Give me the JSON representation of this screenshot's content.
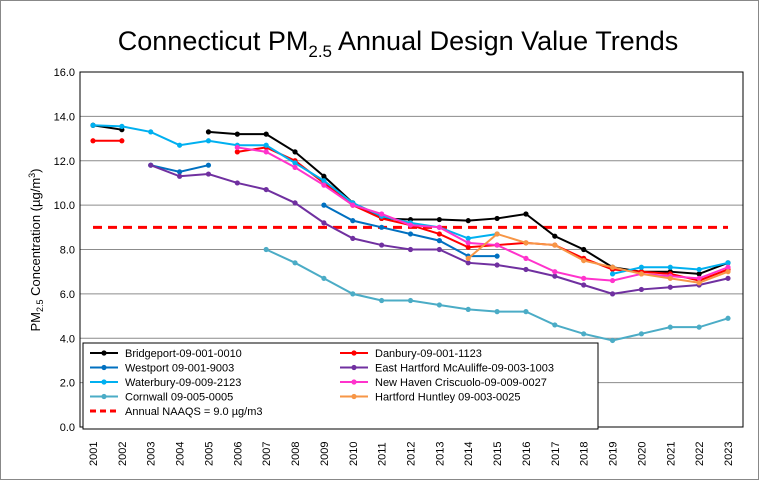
{
  "chart_data": {
    "type": "line",
    "title": {
      "main": "Connecticut PM",
      "sub": "2.5",
      "rest": " Annual Design Value Trends"
    },
    "ylabel": {
      "pre": "PM",
      "sub": "2.5",
      "mid": " Concentration (µg/m",
      "sup": "3",
      "post": ")"
    },
    "xlabel": "",
    "ylim": [
      0,
      16
    ],
    "yticks": [
      "0.0",
      "2.0",
      "4.0",
      "6.0",
      "8.0",
      "10.0",
      "12.0",
      "14.0",
      "16.0"
    ],
    "x": [
      "2001",
      "2002",
      "2003",
      "2004",
      "2005",
      "2006",
      "2007",
      "2008",
      "2009",
      "2010",
      "2011",
      "2012",
      "2013",
      "2014",
      "2015",
      "2016",
      "2017",
      "2018",
      "2019",
      "2020",
      "2021",
      "2022",
      "2023"
    ],
    "grid": true,
    "legend_position": "bottom-left",
    "series": [
      {
        "name": "Bridgeport-09-001-0010",
        "color": "#000000",
        "values": [
          13.6,
          13.4,
          null,
          null,
          13.3,
          13.2,
          13.2,
          12.4,
          11.3,
          10.1,
          9.4,
          9.35,
          9.35,
          9.3,
          9.4,
          9.6,
          8.6,
          8.0,
          7.2,
          7.0,
          7.0,
          6.9,
          7.4
        ]
      },
      {
        "name": "Danbury-09-001-1123",
        "color": "#ff0000",
        "values": [
          12.9,
          12.9,
          null,
          null,
          null,
          12.4,
          12.6,
          12.0,
          11.0,
          10.0,
          9.4,
          9.1,
          8.7,
          8.1,
          8.2,
          8.3,
          8.2,
          7.6,
          7.1,
          7.0,
          6.9,
          6.6,
          7.1
        ]
      },
      {
        "name": "Westport 09-001-9003",
        "color": "#0070c0",
        "values": [
          null,
          null,
          11.8,
          11.5,
          11.8,
          null,
          null,
          null,
          10.0,
          9.3,
          9.0,
          8.7,
          8.4,
          7.7,
          7.7,
          null,
          null,
          null,
          null,
          null,
          null,
          null,
          null
        ]
      },
      {
        "name": "East Hartford McAuliffe-09-003-1003",
        "color": "#7030a0",
        "values": [
          null,
          null,
          11.8,
          11.3,
          11.4,
          11.0,
          10.7,
          10.1,
          9.2,
          8.5,
          8.2,
          8.0,
          8.0,
          7.4,
          7.3,
          7.1,
          6.8,
          6.4,
          6.0,
          6.2,
          6.3,
          6.4,
          6.7
        ]
      },
      {
        "name": "Waterbury-09-009-2123",
        "color": "#00b0f0",
        "values": [
          13.6,
          13.55,
          13.3,
          12.7,
          12.9,
          12.7,
          12.7,
          11.9,
          11.1,
          10.1,
          9.5,
          9.2,
          9.0,
          8.5,
          8.7,
          null,
          null,
          null,
          6.9,
          7.2,
          7.2,
          7.1,
          7.4
        ]
      },
      {
        "name": "New Haven Criscuolo-09-009-0027",
        "color": "#ff33cc",
        "values": [
          null,
          null,
          null,
          null,
          null,
          12.6,
          12.4,
          11.7,
          10.9,
          10.0,
          9.6,
          9.1,
          9.0,
          8.3,
          8.2,
          7.6,
          7.0,
          6.7,
          6.6,
          6.9,
          6.8,
          6.7,
          7.2
        ]
      },
      {
        "name": "Cornwall 09-005-0005",
        "color": "#4bacc6",
        "values": [
          null,
          null,
          null,
          null,
          null,
          null,
          8.0,
          7.4,
          6.7,
          6.0,
          5.7,
          5.7,
          5.5,
          5.3,
          5.2,
          5.2,
          4.6,
          4.2,
          3.9,
          4.2,
          4.5,
          4.5,
          4.9
        ]
      },
      {
        "name": "Hartford Huntley 09-003-0025",
        "color": "#f79646",
        "values": [
          null,
          null,
          null,
          null,
          null,
          null,
          null,
          null,
          null,
          null,
          null,
          null,
          null,
          7.6,
          8.7,
          8.3,
          8.2,
          7.5,
          7.2,
          6.9,
          6.7,
          6.5,
          7.0
        ]
      }
    ],
    "reference_line": {
      "name": "Annual NAAQS = 9.0 µg/m3",
      "value": 9.0,
      "color": "#ff0000",
      "style": "dashed"
    }
  }
}
